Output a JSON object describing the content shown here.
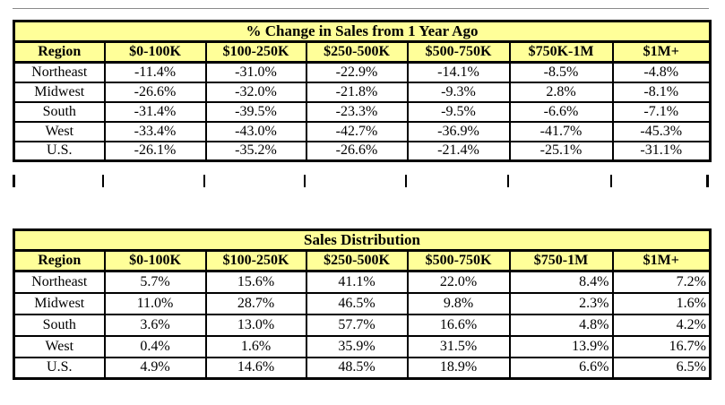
{
  "colors": {
    "header_bg": "#FFFF99",
    "border": "#000000",
    "text": "#000000",
    "page_bg": "#FFFFFF"
  },
  "tables": [
    {
      "title": "% Change in Sales from 1 Year Ago",
      "columns": [
        "Region",
        "$0-100K",
        "$100-250K",
        "$250-500K",
        "$500-750K",
        "$750K-1M",
        "$1M+"
      ],
      "rows": [
        {
          "region": "Northeast",
          "values": [
            "-11.4%",
            "-31.0%",
            "-22.9%",
            "-14.1%",
            "-8.5%",
            "-4.8%"
          ]
        },
        {
          "region": "Midwest",
          "values": [
            "-26.6%",
            "-32.0%",
            "-21.8%",
            "-9.3%",
            "2.8%",
            "-8.1%"
          ]
        },
        {
          "region": "South",
          "values": [
            "-31.4%",
            "-39.5%",
            "-23.3%",
            "-9.5%",
            "-6.6%",
            "-7.1%"
          ]
        },
        {
          "region": "West",
          "values": [
            "-33.4%",
            "-43.0%",
            "-42.7%",
            "-36.9%",
            "-41.7%",
            "-45.3%"
          ]
        },
        {
          "region": "U.S.",
          "values": [
            "-26.1%",
            "-35.2%",
            "-26.6%",
            "-21.4%",
            "-25.1%",
            "-31.1%"
          ]
        }
      ]
    },
    {
      "title": "Sales Distribution",
      "columns": [
        "Region",
        "$0-100K",
        "$100-250K",
        "$250-500K",
        "$500-750K",
        "$750-1M",
        "$1M+"
      ],
      "rows": [
        {
          "region": "Northeast",
          "values": [
            "5.7%",
            "15.6%",
            "41.1%",
            "22.0%",
            "8.4%",
            "7.2%"
          ]
        },
        {
          "region": "Midwest",
          "values": [
            "11.0%",
            "28.7%",
            "46.5%",
            "9.8%",
            "2.3%",
            "1.6%"
          ]
        },
        {
          "region": "South",
          "values": [
            "3.6%",
            "13.0%",
            "57.7%",
            "16.6%",
            "4.8%",
            "4.2%"
          ]
        },
        {
          "region": "West",
          "values": [
            "0.4%",
            "1.6%",
            "35.9%",
            "31.5%",
            "13.9%",
            "16.7%"
          ]
        },
        {
          "region": "U.S.",
          "values": [
            "4.9%",
            "14.6%",
            "48.5%",
            "18.9%",
            "6.6%",
            "6.5%"
          ]
        }
      ]
    }
  ]
}
